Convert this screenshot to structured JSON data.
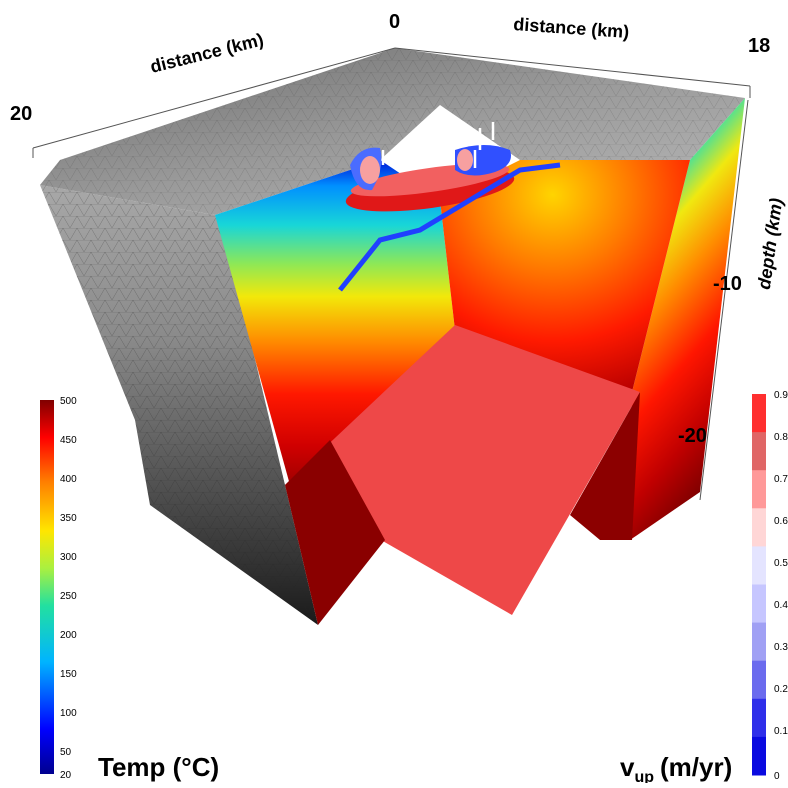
{
  "figure": {
    "axes": {
      "distance_left_label": "distance (km)",
      "distance_right_label": "distance (km)",
      "depth_label": "depth (km)",
      "corner_20": "20",
      "corner_0": "0",
      "corner_18": "18",
      "depth_ticks": [
        "-10",
        "-20"
      ]
    },
    "temp_colorbar": {
      "title": "Temp (°C)",
      "ticks": [
        "500",
        "450",
        "400",
        "350",
        "300",
        "250",
        "200",
        "150",
        "100",
        "50",
        "20"
      ]
    },
    "vup_colorbar": {
      "title_main": "v",
      "title_sub": "up",
      "title_unit": "(m/yr)",
      "ticks": [
        "0.9",
        "0.8",
        "0.7",
        "0.6",
        "0.5",
        "0.4",
        "0.3",
        "0.2",
        "0.1",
        "0"
      ],
      "colors": [
        "#ff2f2f",
        "#e06666",
        "#ff9999",
        "#ffd6d6",
        "#e4e4ff",
        "#c6c6ff",
        "#a0a0f4",
        "#6b6bee",
        "#2f2fea",
        "#0a0ae0"
      ]
    }
  }
}
